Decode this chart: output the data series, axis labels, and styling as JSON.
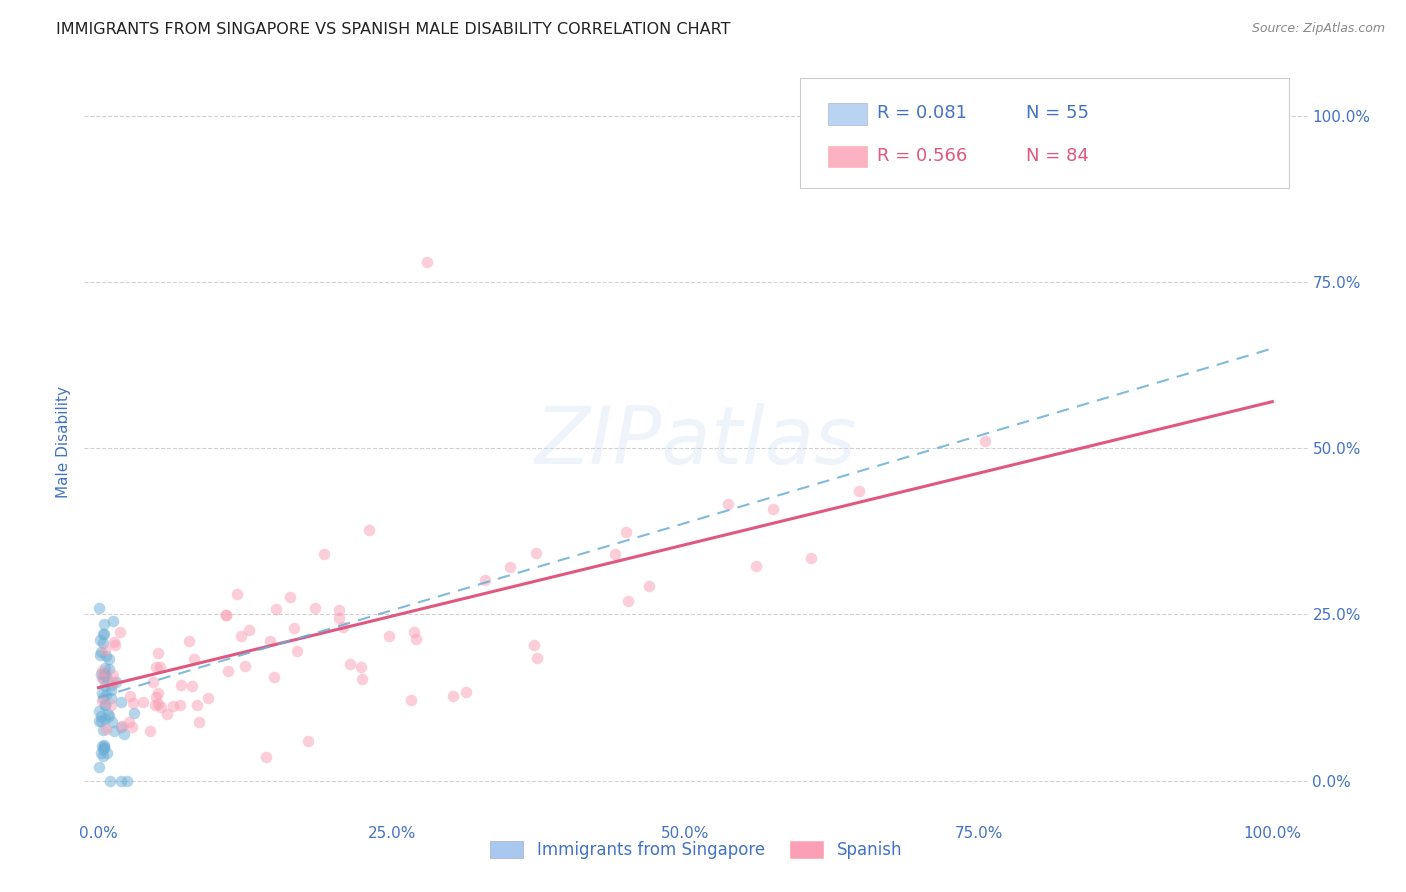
{
  "title": "IMMIGRANTS FROM SINGAPORE VS SPANISH MALE DISABILITY CORRELATION CHART",
  "source": "Source: ZipAtlas.com",
  "ylabel": "Male Disability",
  "y_ticks": [
    "0.0%",
    "25.0%",
    "50.0%",
    "75.0%",
    "100.0%"
  ],
  "y_tick_vals": [
    0.0,
    0.25,
    0.5,
    0.75,
    1.0
  ],
  "x_ticks": [
    "0.0%",
    "25.0%",
    "50.0%",
    "75.0%",
    "100.0%"
  ],
  "x_tick_vals": [
    0.0,
    0.25,
    0.5,
    0.75,
    1.0
  ],
  "legend_R_blue": "R = 0.081",
  "legend_N_blue": "N = 55",
  "legend_R_pink": "R = 0.566",
  "legend_N_pink": "N = 84",
  "label_blue": "Immigrants from Singapore",
  "label_pink": "Spanish",
  "watermark": "ZIPatlas",
  "background_color": "#ffffff",
  "scatter_alpha": 0.5,
  "scatter_size": 70,
  "blue_color": "#6baed6",
  "blue_fill": "#a8c8f0",
  "pink_color": "#fa9fb5",
  "pink_line_color": "#e05880",
  "grid_color": "#cccccc",
  "tick_label_color": "#4472c4",
  "pink_line_y0": 0.14,
  "pink_line_y1": 0.57,
  "blue_line_y0": 0.125,
  "blue_line_y1": 0.65
}
